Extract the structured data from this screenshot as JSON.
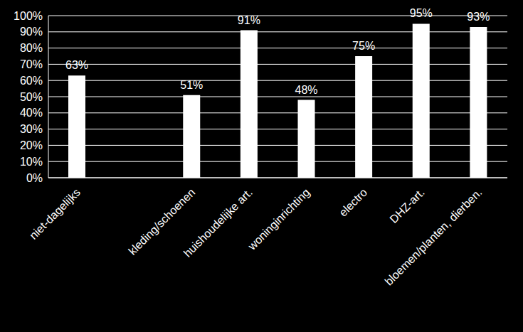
{
  "chart_data": {
    "type": "bar",
    "categories": [
      "niet-dagelijks",
      null,
      "kleding/schoenen",
      "huishoudelijke art.",
      "woninginrichting",
      "electro",
      "DHZ-art.",
      "bloemen/planten, dierben."
    ],
    "values": [
      63,
      null,
      51,
      91,
      48,
      75,
      95,
      93
    ],
    "value_labels": [
      "63%",
      null,
      "51%",
      "91%",
      "48%",
      "75%",
      "95%",
      "93%"
    ],
    "color": "#ffffff",
    "ylim": [
      0,
      100
    ],
    "yticks": [
      {
        "value": 0,
        "label": "0%"
      },
      {
        "value": 10,
        "label": "10%"
      },
      {
        "value": 20,
        "label": "20%"
      },
      {
        "value": 30,
        "label": "30%"
      },
      {
        "value": 40,
        "label": "40%"
      },
      {
        "value": 50,
        "label": "50%"
      },
      {
        "value": 60,
        "label": "60%"
      },
      {
        "value": 70,
        "label": "70%"
      },
      {
        "value": 80,
        "label": "80%"
      },
      {
        "value": 90,
        "label": "90%"
      },
      {
        "value": 100,
        "label": "100%"
      }
    ],
    "grid": true,
    "data_labels": true
  }
}
